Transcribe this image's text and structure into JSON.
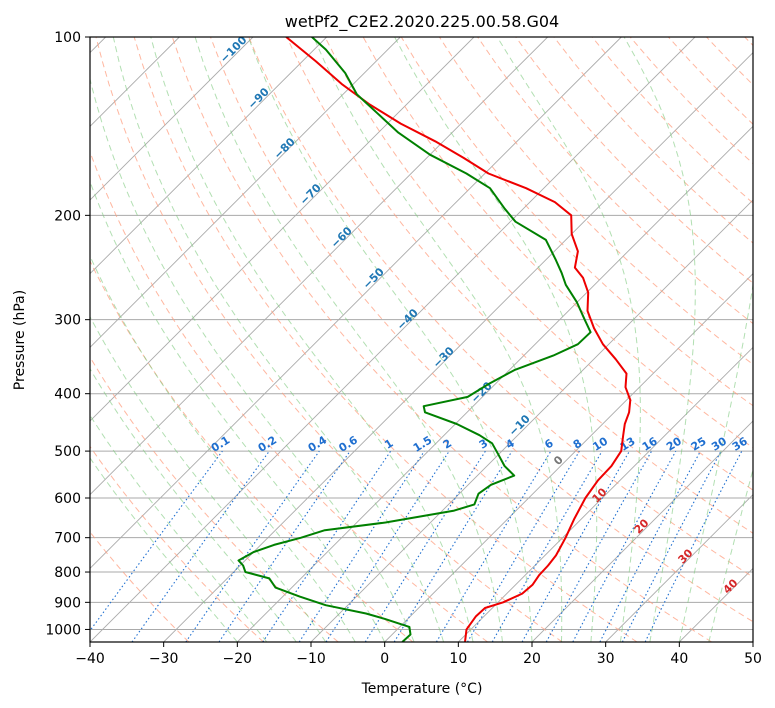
{
  "chart_data": {
    "type": "line",
    "title": "wetPf2_C2E2.2020.225.00.58.G04",
    "xlabel": "Temperature (°C)",
    "ylabel": "Pressure (hPa)",
    "xlim": [
      -40,
      50
    ],
    "ylim": [
      1050,
      100
    ],
    "y_scale": "log",
    "x_ticks": [
      "−40",
      "−30",
      "−20",
      "−10",
      "0",
      "10",
      "20",
      "30",
      "40",
      "50"
    ],
    "y_ticks": [
      "100",
      "200",
      "300",
      "400",
      "500",
      "600",
      "700",
      "800",
      "900",
      "1000"
    ],
    "grid": true,
    "skew_t": true,
    "series": [
      {
        "role": "temperature",
        "color": "#ee0000",
        "points": [
          [
            10.9,
            1050
          ],
          [
            9.4,
            1000
          ],
          [
            8.9,
            950
          ],
          [
            9.0,
            920
          ],
          [
            10.7,
            900
          ],
          [
            12.1,
            870
          ],
          [
            12.3,
            840
          ],
          [
            11.9,
            810
          ],
          [
            11.8,
            780
          ],
          [
            11.5,
            750
          ],
          [
            10.4,
            700
          ],
          [
            9.0,
            650
          ],
          [
            7.7,
            600
          ],
          [
            7.0,
            560
          ],
          [
            6.9,
            530
          ],
          [
            6.2,
            500
          ],
          [
            4.3,
            470
          ],
          [
            3.0,
            450
          ],
          [
            2.0,
            430
          ],
          [
            0.5,
            410
          ],
          [
            -1.9,
            390
          ],
          [
            -3.6,
            370
          ],
          [
            -7.0,
            350
          ],
          [
            -10.8,
            330
          ],
          [
            -14.2,
            310
          ],
          [
            -17.4,
            290
          ],
          [
            -19.8,
            270
          ],
          [
            -22.5,
            255
          ],
          [
            -25.0,
            245
          ],
          [
            -26.8,
            230
          ],
          [
            -30.0,
            215
          ],
          [
            -32.6,
            200
          ],
          [
            -36.6,
            190
          ],
          [
            -42.4,
            180
          ],
          [
            -49.5,
            170
          ],
          [
            -55.0,
            160
          ],
          [
            -61.1,
            150
          ],
          [
            -68.2,
            140
          ],
          [
            -75.0,
            130
          ],
          [
            -81.6,
            120
          ],
          [
            -88.1,
            110
          ],
          [
            -95.5,
            100
          ]
        ]
      },
      {
        "role": "dewpoint",
        "color": "#008000",
        "points": [
          [
            2.4,
            1050
          ],
          [
            2.5,
            1020
          ],
          [
            1.3,
            990
          ],
          [
            -3.1,
            960
          ],
          [
            -6.4,
            940
          ],
          [
            -13.0,
            910
          ],
          [
            -17.7,
            880
          ],
          [
            -22.2,
            850
          ],
          [
            -24.3,
            820
          ],
          [
            -28.4,
            800
          ],
          [
            -29.6,
            780
          ],
          [
            -30.9,
            765
          ],
          [
            -30.0,
            740
          ],
          [
            -28.2,
            720
          ],
          [
            -25.5,
            700
          ],
          [
            -23.3,
            680
          ],
          [
            -16.1,
            660
          ],
          [
            -8.4,
            630
          ],
          [
            -6.5,
            615
          ],
          [
            -7.4,
            590
          ],
          [
            -6.9,
            570
          ],
          [
            -5.0,
            550
          ],
          [
            -7.6,
            530
          ],
          [
            -10.2,
            505
          ],
          [
            -12.4,
            485
          ],
          [
            -15.2,
            470
          ],
          [
            -19.8,
            450
          ],
          [
            -25.7,
            430
          ],
          [
            -26.7,
            420
          ],
          [
            -22.0,
            405
          ],
          [
            -20.9,
            385
          ],
          [
            -19.3,
            365
          ],
          [
            -16.0,
            345
          ],
          [
            -14.2,
            330
          ],
          [
            -14.1,
            315
          ],
          [
            -16.6,
            300
          ],
          [
            -20.1,
            280
          ],
          [
            -23.9,
            262
          ],
          [
            -26.1,
            250
          ],
          [
            -28.6,
            238
          ],
          [
            -32.7,
            220
          ],
          [
            -39.3,
            205
          ],
          [
            -42.5,
            195
          ],
          [
            -47.3,
            180
          ],
          [
            -52.5,
            170
          ],
          [
            -60.0,
            158
          ],
          [
            -67.3,
            145
          ],
          [
            -72.5,
            135
          ],
          [
            -78.1,
            125
          ],
          [
            -82.6,
            115
          ],
          [
            -88.4,
            105
          ],
          [
            -92.0,
            100
          ]
        ]
      }
    ],
    "dry_adiabat_labels": [
      "−100",
      "−90",
      "−80",
      "−70",
      "−60",
      "−50",
      "−40",
      "−30",
      "−20",
      "−10",
      "0",
      "10",
      "20",
      "30",
      "40"
    ],
    "mixing_ratio_labels": [
      "0.1",
      "0.2",
      "0.4",
      "0.6",
      "1",
      "1.5",
      "2",
      "3",
      "4",
      "6",
      "8",
      "10",
      "13",
      "16",
      "20",
      "25",
      "30",
      "36"
    ],
    "colors": {
      "temperature": "#ee0000",
      "dewpoint": "#008000",
      "isotherm": "#aaaaaa",
      "dry_adiabat": "#ff9f80",
      "moist_adiabat": "#7fc97f",
      "mixing_ratio": "#1f6fd0",
      "adiabat_label": "#1f77b4",
      "warm_label": "#d62728",
      "zero_label": "#777777"
    }
  }
}
